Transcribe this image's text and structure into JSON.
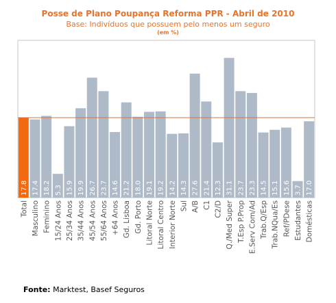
{
  "chart_data": {
    "type": "bar",
    "title": "Posse de Plano Poupança Reforma PPR - Abril de 2010",
    "subtitle": "Base: Indivíduos que possuem pelo menos um seguro",
    "unit_label": "(em %)",
    "categories": [
      "Total",
      "Masculino",
      "Feminino",
      "15/24 Anos",
      "25/34 Anos",
      "35/44 Anos",
      "45/54 Anos",
      "55/64 Anos",
      "+64 Anos",
      "Gd. Lisboa",
      "Gd. Porto",
      "Litoral Norte",
      "Litoral Centro",
      "Interior Norte",
      "Sul",
      "A/B",
      "C1",
      "C2/D",
      "Q./Med Super",
      "T.Esp P.Prop",
      "E.Serv Com/Ad",
      "Trab.Q/Esp",
      "Trab.NQua/Es",
      "Ref/PDese",
      "Estudantes",
      "Domésticas"
    ],
    "values": [
      17.8,
      17.4,
      18.2,
      5.3,
      15.9,
      19.9,
      26.7,
      23.7,
      14.6,
      21.2,
      18.0,
      19.1,
      19.2,
      14.2,
      14.3,
      27.6,
      21.4,
      12.3,
      31.1,
      23.7,
      23.3,
      14.5,
      15.1,
      15.6,
      3.7,
      17.0
    ],
    "value_labels": [
      "17.8",
      "17.4",
      "18.2",
      "5.3",
      "15.9",
      "19.9",
      "26.7",
      "23.7",
      "14.6",
      "21.2",
      "18.0",
      "19.1",
      "19.2",
      "14.2",
      "14.3",
      "27.6",
      "21.4",
      "12.3",
      "31.1",
      "23.7",
      "23.3",
      "14.5",
      "15.1",
      "15.6",
      "3.7",
      "17.0"
    ],
    "reference_line": 17.8,
    "ylim": [
      0,
      35
    ],
    "grid": false,
    "colors": {
      "highlight": "#f26a10",
      "bar": "#afbac9",
      "reference_line": "#e0703a",
      "frame": "#c8c8c8",
      "value_label": "#ffffff",
      "title": "#e8732a"
    }
  },
  "source": {
    "label": "Fonte:",
    "text": " Marktest, Basef Seguros"
  }
}
